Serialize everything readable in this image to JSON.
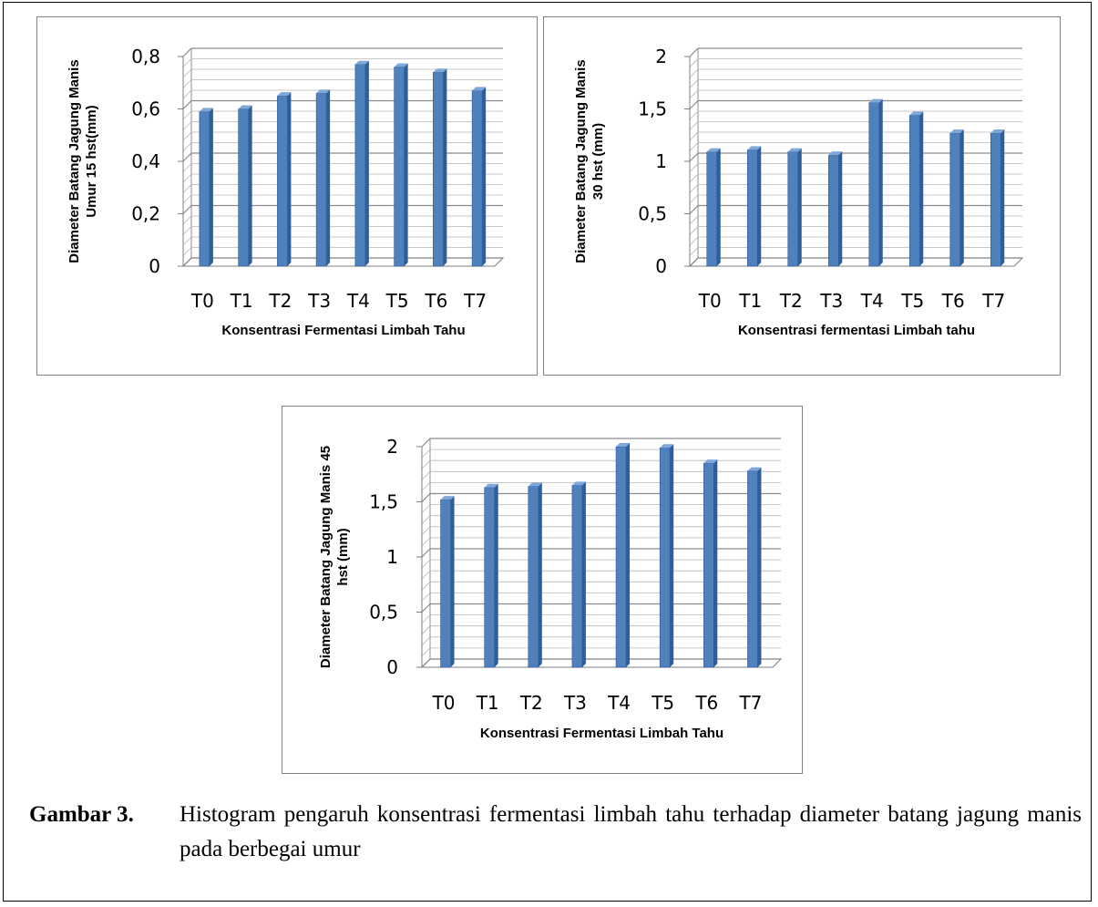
{
  "figure": {
    "label": "Gambar 3.",
    "caption": "Histogram pengaruh konsentrasi fermentasi limbah tahu terhadap diameter batang jagung manis pada berbegai umur"
  },
  "chart_data": [
    {
      "type": "bar",
      "categories": [
        "T0",
        "T1",
        "T2",
        "T3",
        "T4",
        "T5",
        "T6",
        "T7"
      ],
      "values": [
        0.59,
        0.6,
        0.65,
        0.66,
        0.77,
        0.76,
        0.74,
        0.67
      ],
      "xlabel": "Konsentrasi Fermentasi Limbah Tahu",
      "ylabel": [
        "Diameter Batang Jagung Manis",
        "Umur 15 hst(mm)"
      ],
      "ylim": [
        0,
        0.8
      ],
      "ticks": [
        0,
        0.2,
        0.4,
        0.6,
        0.8
      ],
      "tick_labels": [
        "0",
        "0,2",
        "0,4",
        "0,6",
        "0,8"
      ],
      "grid": true,
      "color": "#4f81bd"
    },
    {
      "type": "bar",
      "categories": [
        "T0",
        "T1",
        "T2",
        "T3",
        "T4",
        "T5",
        "T6",
        "T7"
      ],
      "values": [
        1.09,
        1.11,
        1.09,
        1.06,
        1.56,
        1.44,
        1.27,
        1.27
      ],
      "xlabel": "Konsentrasi fermentasi Limbah tahu",
      "ylabel": [
        "Diameter Batang Jagung Manis",
        "30 hst (mm)"
      ],
      "ylim": [
        0,
        2
      ],
      "ticks": [
        0,
        0.5,
        1,
        1.5,
        2
      ],
      "tick_labels": [
        "0",
        "0,5",
        "1",
        "1,5",
        "2"
      ],
      "grid": true,
      "color": "#4f81bd"
    },
    {
      "type": "bar",
      "categories": [
        "T0",
        "T1",
        "T2",
        "T3",
        "T4",
        "T5",
        "T6",
        "T7"
      ],
      "values": [
        1.52,
        1.63,
        1.64,
        1.65,
        2.0,
        1.99,
        1.85,
        1.78
      ],
      "xlabel": "Konsentrasi Fermentasi Limbah Tahu",
      "ylabel": [
        "Diameter Batang Jagung Manis 45",
        "hst (mm)"
      ],
      "ylim": [
        0,
        2
      ],
      "ticks": [
        0,
        0.5,
        1,
        1.5,
        2
      ],
      "tick_labels": [
        "0",
        "0,5",
        "1",
        "1,5",
        "2"
      ],
      "grid": true,
      "color": "#4f81bd"
    }
  ]
}
